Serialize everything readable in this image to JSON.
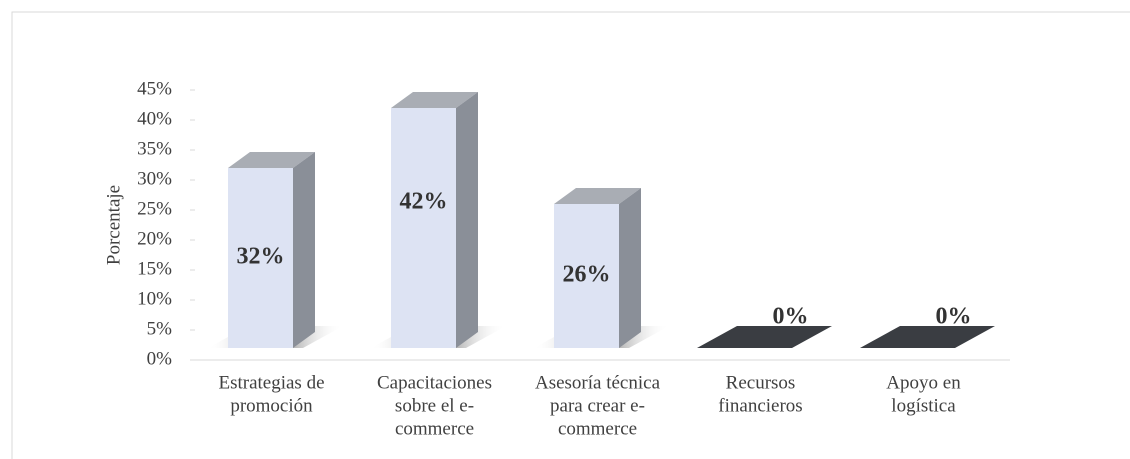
{
  "chart_data": {
    "type": "bar3d",
    "y_label": "Porcentaje",
    "categories": [
      [
        "Estrategias de",
        "promoción"
      ],
      [
        "Capacitaciones",
        "sobre el e-",
        "commerce"
      ],
      [
        "Asesoría técnica",
        "para crear e-",
        "commerce"
      ],
      [
        "Recursos",
        "financieros"
      ],
      [
        "Apoyo en",
        "logística"
      ]
    ],
    "values": [
      32,
      42,
      26,
      0,
      0
    ],
    "value_labels": [
      "32%",
      "42%",
      "26%",
      "0%",
      "0%"
    ],
    "ylim": [
      0,
      45
    ],
    "yticks": [
      {
        "value": 0,
        "label": "0%"
      },
      {
        "value": 5,
        "label": "5%"
      },
      {
        "value": 10,
        "label": "10%"
      },
      {
        "value": 15,
        "label": "15%"
      },
      {
        "value": 20,
        "label": "20%"
      },
      {
        "value": 25,
        "label": "25%"
      },
      {
        "value": 30,
        "label": "30%"
      },
      {
        "value": 35,
        "label": "35%"
      },
      {
        "value": 40,
        "label": "40%"
      },
      {
        "value": 45,
        "label": "45%"
      }
    ],
    "color": "#dde3f3"
  }
}
